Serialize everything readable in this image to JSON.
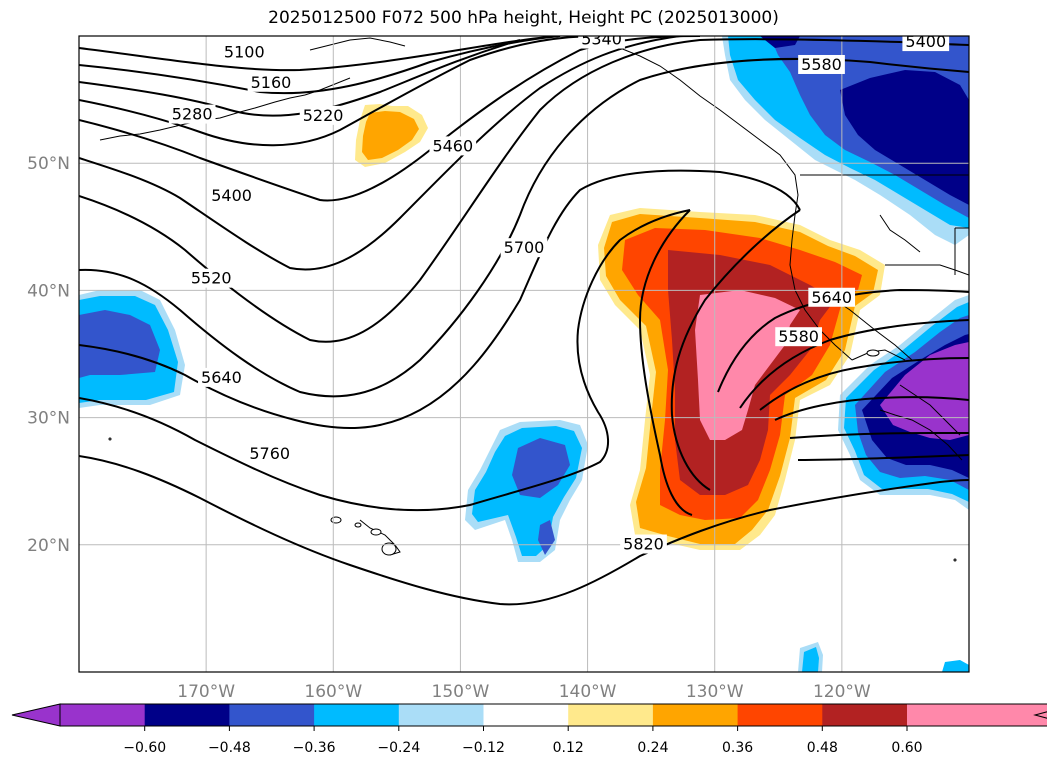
{
  "title": "2025012500 F072 500 hPa height, Height PC (2025013000)",
  "map": {
    "lon_range": [
      -180,
      -110
    ],
    "lat_range": [
      10,
      60
    ],
    "lon_ticks": [
      {
        "lon": -170,
        "label": "170°W"
      },
      {
        "lon": -160,
        "label": "160°W"
      },
      {
        "lon": -150,
        "label": "150°W"
      },
      {
        "lon": -140,
        "label": "140°W"
      },
      {
        "lon": -130,
        "label": "130°W"
      },
      {
        "lon": -120,
        "label": "120°W"
      }
    ],
    "lat_ticks": [
      {
        "lat": 20,
        "label": "20°N"
      },
      {
        "lat": 30,
        "label": "30°N"
      },
      {
        "lat": 40,
        "label": "40°N"
      },
      {
        "lat": 50,
        "label": "50°N"
      }
    ],
    "contour_labels": [
      {
        "text": "5100",
        "lon": -167,
        "lat": 58.8
      },
      {
        "text": "5160",
        "lon": -164.9,
        "lat": 56.4
      },
      {
        "text": "5220",
        "lon": -160.8,
        "lat": 53.8
      },
      {
        "text": "5280",
        "lon": -171.1,
        "lat": 53.9
      },
      {
        "text": "5340",
        "lon": -138.9,
        "lat": 59.8
      },
      {
        "text": "5400",
        "lon": -113.4,
        "lat": 59.6
      },
      {
        "text": "5400",
        "lon": -168,
        "lat": 47.5
      },
      {
        "text": "5460",
        "lon": -150.6,
        "lat": 51.4
      },
      {
        "text": "5520",
        "lon": -169.6,
        "lat": 41
      },
      {
        "text": "5580",
        "lon": -121.6,
        "lat": 57.8
      },
      {
        "text": "5580",
        "lon": -123.4,
        "lat": 36.4
      },
      {
        "text": "5640",
        "lon": -120.8,
        "lat": 39.5
      },
      {
        "text": "5640",
        "lon": -168.8,
        "lat": 33.2
      },
      {
        "text": "5700",
        "lon": -145,
        "lat": 43.4
      },
      {
        "text": "5760",
        "lon": -165,
        "lat": 27.2
      },
      {
        "text": "5820",
        "lon": -135.6,
        "lat": 20.1
      }
    ]
  },
  "colorbar": {
    "ticks": [
      "−0.60",
      "−0.48",
      "−0.36",
      "−0.24",
      "−0.12",
      "0.12",
      "0.24",
      "0.36",
      "0.48",
      "0.60"
    ],
    "colors": [
      "#9933cc",
      "#000088",
      "#3355cc",
      "#00bbff",
      "#aaddf7",
      "#ffffff",
      "#ffe98c",
      "#ffa500",
      "#ff4500",
      "#b22222",
      "#ff88aa",
      "#ff88aa"
    ]
  }
}
